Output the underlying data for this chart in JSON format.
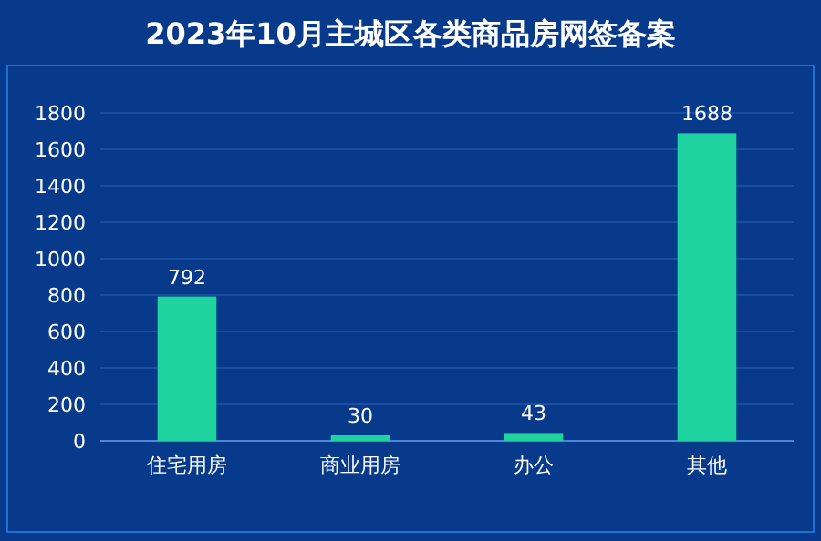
{
  "chart_data": {
    "type": "bar",
    "title": "2023年10月主城区各类商品房网签备案",
    "categories": [
      "住宅用房",
      "商业用房",
      "办公",
      "其他"
    ],
    "values": [
      792,
      30,
      43,
      1688
    ],
    "color": "#1fd39e",
    "ylim": [
      0,
      1800
    ],
    "yticks": [
      0,
      200,
      400,
      600,
      800,
      1000,
      1200,
      1400,
      1600,
      1800
    ],
    "grid": "y",
    "data_labels": true
  }
}
